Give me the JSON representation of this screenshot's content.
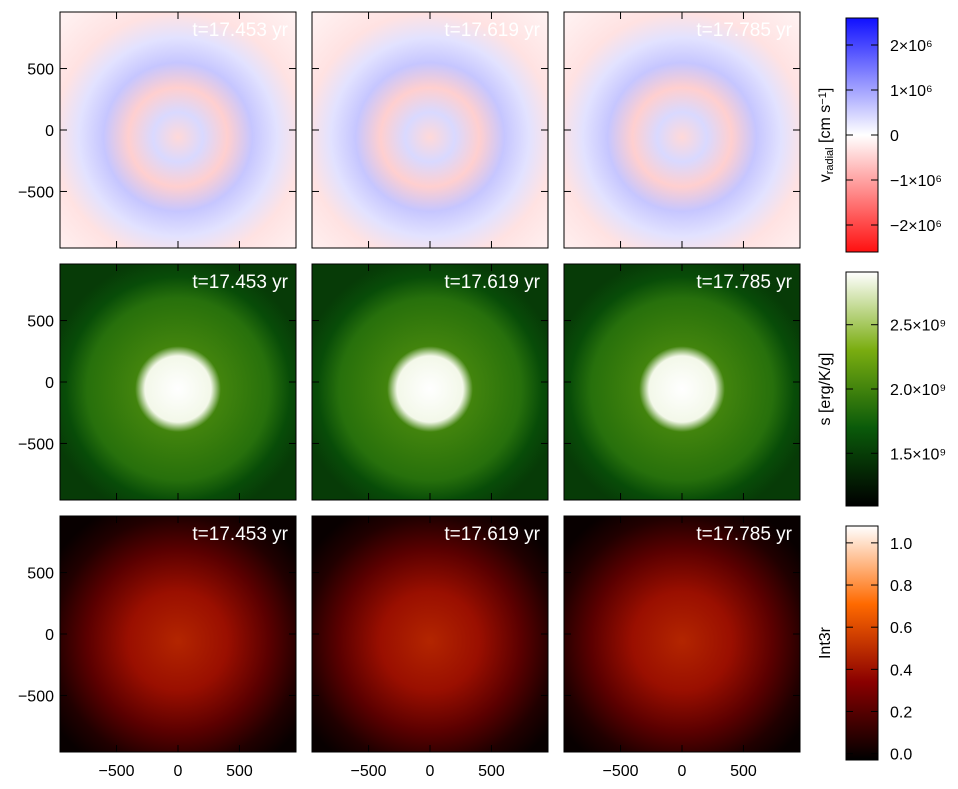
{
  "chart_data": [
    {
      "type": "image",
      "panel_titles": [
        "t=17.453 yr",
        "t=17.619 yr",
        "t=17.785 yr"
      ],
      "ylim": [
        -960,
        960
      ],
      "yticks": [
        {
          "value": -500,
          "label": "−500"
        },
        0,
        500
      ],
      "colorbar": {
        "label": [
          {
            "text": "v"
          },
          {
            "text": "radial",
            "style": "sub"
          },
          {
            "text": " [cm s"
          },
          {
            "text": "−1",
            "style": "sup"
          },
          {
            "text": "]"
          }
        ],
        "clim": [
          -2600000,
          2600000
        ],
        "ticks": [
          {
            "value": -2000000,
            "label": "−2×10⁶"
          },
          {
            "value": -1000000,
            "label": "−1×10⁶"
          },
          0,
          {
            "value": 1000000,
            "label": "1×10⁶"
          },
          {
            "value": 2000000,
            "label": "2×10⁶"
          }
        ],
        "colormap": [
          "#ff1010",
          "#ffffff",
          "#1010ff"
        ]
      }
    },
    {
      "type": "image",
      "panel_titles": [
        "t=17.453 yr",
        "t=17.619 yr",
        "t=17.785 yr"
      ],
      "ylim": [
        -960,
        960
      ],
      "yticks": [
        {
          "value": -500,
          "label": "−500"
        },
        0,
        500
      ],
      "colorbar": {
        "label": [
          {
            "text": "s [erg/K/g]"
          }
        ],
        "clim": [
          1090000000,
          2910000000
        ],
        "ticks": [
          {
            "value": 1500000000,
            "label": "1.5×10⁹"
          },
          {
            "value": 2000000000,
            "label": "2.0×10⁹"
          },
          {
            "value": 2500000000,
            "label": "2.5×10⁹"
          }
        ],
        "colormap": [
          "#000000",
          "#0a5a0a",
          "#7aad10",
          "#ffffff"
        ]
      }
    },
    {
      "type": "image",
      "panel_titles": [
        "t=17.453 yr",
        "t=17.619 yr",
        "t=17.785 yr"
      ],
      "xlim": [
        -960,
        960
      ],
      "ylim": [
        -960,
        960
      ],
      "xticks": [
        {
          "value": -500,
          "label": "−500"
        },
        0,
        500
      ],
      "yticks": [
        {
          "value": -500,
          "label": "−500"
        },
        0,
        500
      ],
      "colorbar": {
        "label": [
          {
            "text": "Int3r"
          }
        ],
        "clim": [
          -0.03,
          1.08
        ],
        "ticks": [
          {
            "value": 0,
            "label": "0.0"
          },
          0.2,
          0.4,
          0.6,
          0.8,
          {
            "value": 1,
            "label": "1.0"
          }
        ],
        "colormap": [
          "#000000",
          "#8a0000",
          "#ff6a00",
          "#ffffff"
        ]
      }
    }
  ]
}
